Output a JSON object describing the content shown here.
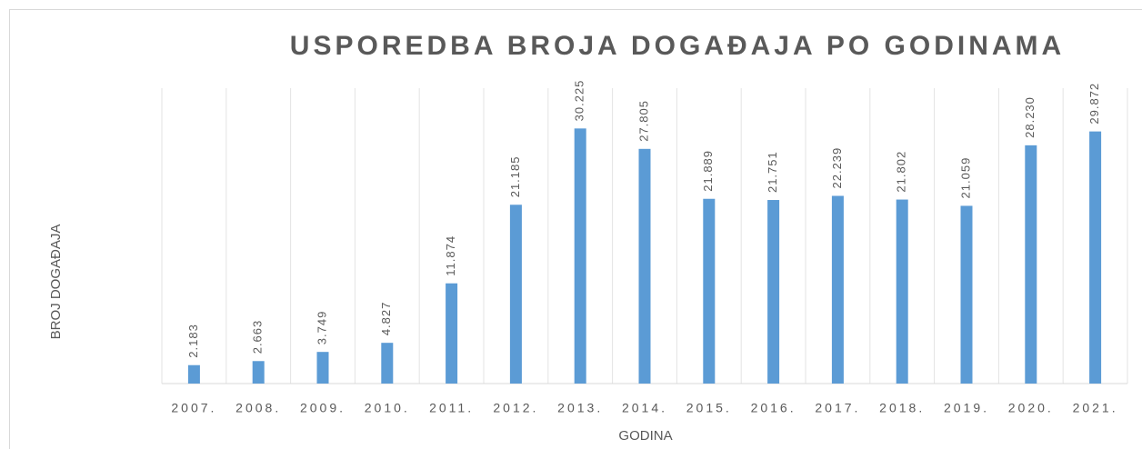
{
  "chart_data": {
    "type": "bar",
    "title": "USPOREDBA BROJA DOGAĐAJA PO GODINAMA",
    "xlabel": "GODINA",
    "ylabel": "BROJ DOGAĐAJA",
    "categories": [
      "2007.",
      "2008.",
      "2009.",
      "2010.",
      "2011.",
      "2012.",
      "2013.",
      "2014.",
      "2015.",
      "2016.",
      "2017.",
      "2018.",
      "2019.",
      "2020.",
      "2021."
    ],
    "values": [
      2183,
      2663,
      3749,
      4827,
      11874,
      21185,
      30225,
      27805,
      21889,
      21751,
      22239,
      21802,
      21059,
      28230,
      29872
    ],
    "value_labels": [
      "2.183",
      "2.663",
      "3.749",
      "4.827",
      "11.874",
      "21.185",
      "30.225",
      "27.805",
      "21.889",
      "21.751",
      "22.239",
      "21.802",
      "21.059",
      "28.230",
      "29.872"
    ],
    "color": "#5b9bd5",
    "ylim": [
      0,
      35000
    ]
  }
}
